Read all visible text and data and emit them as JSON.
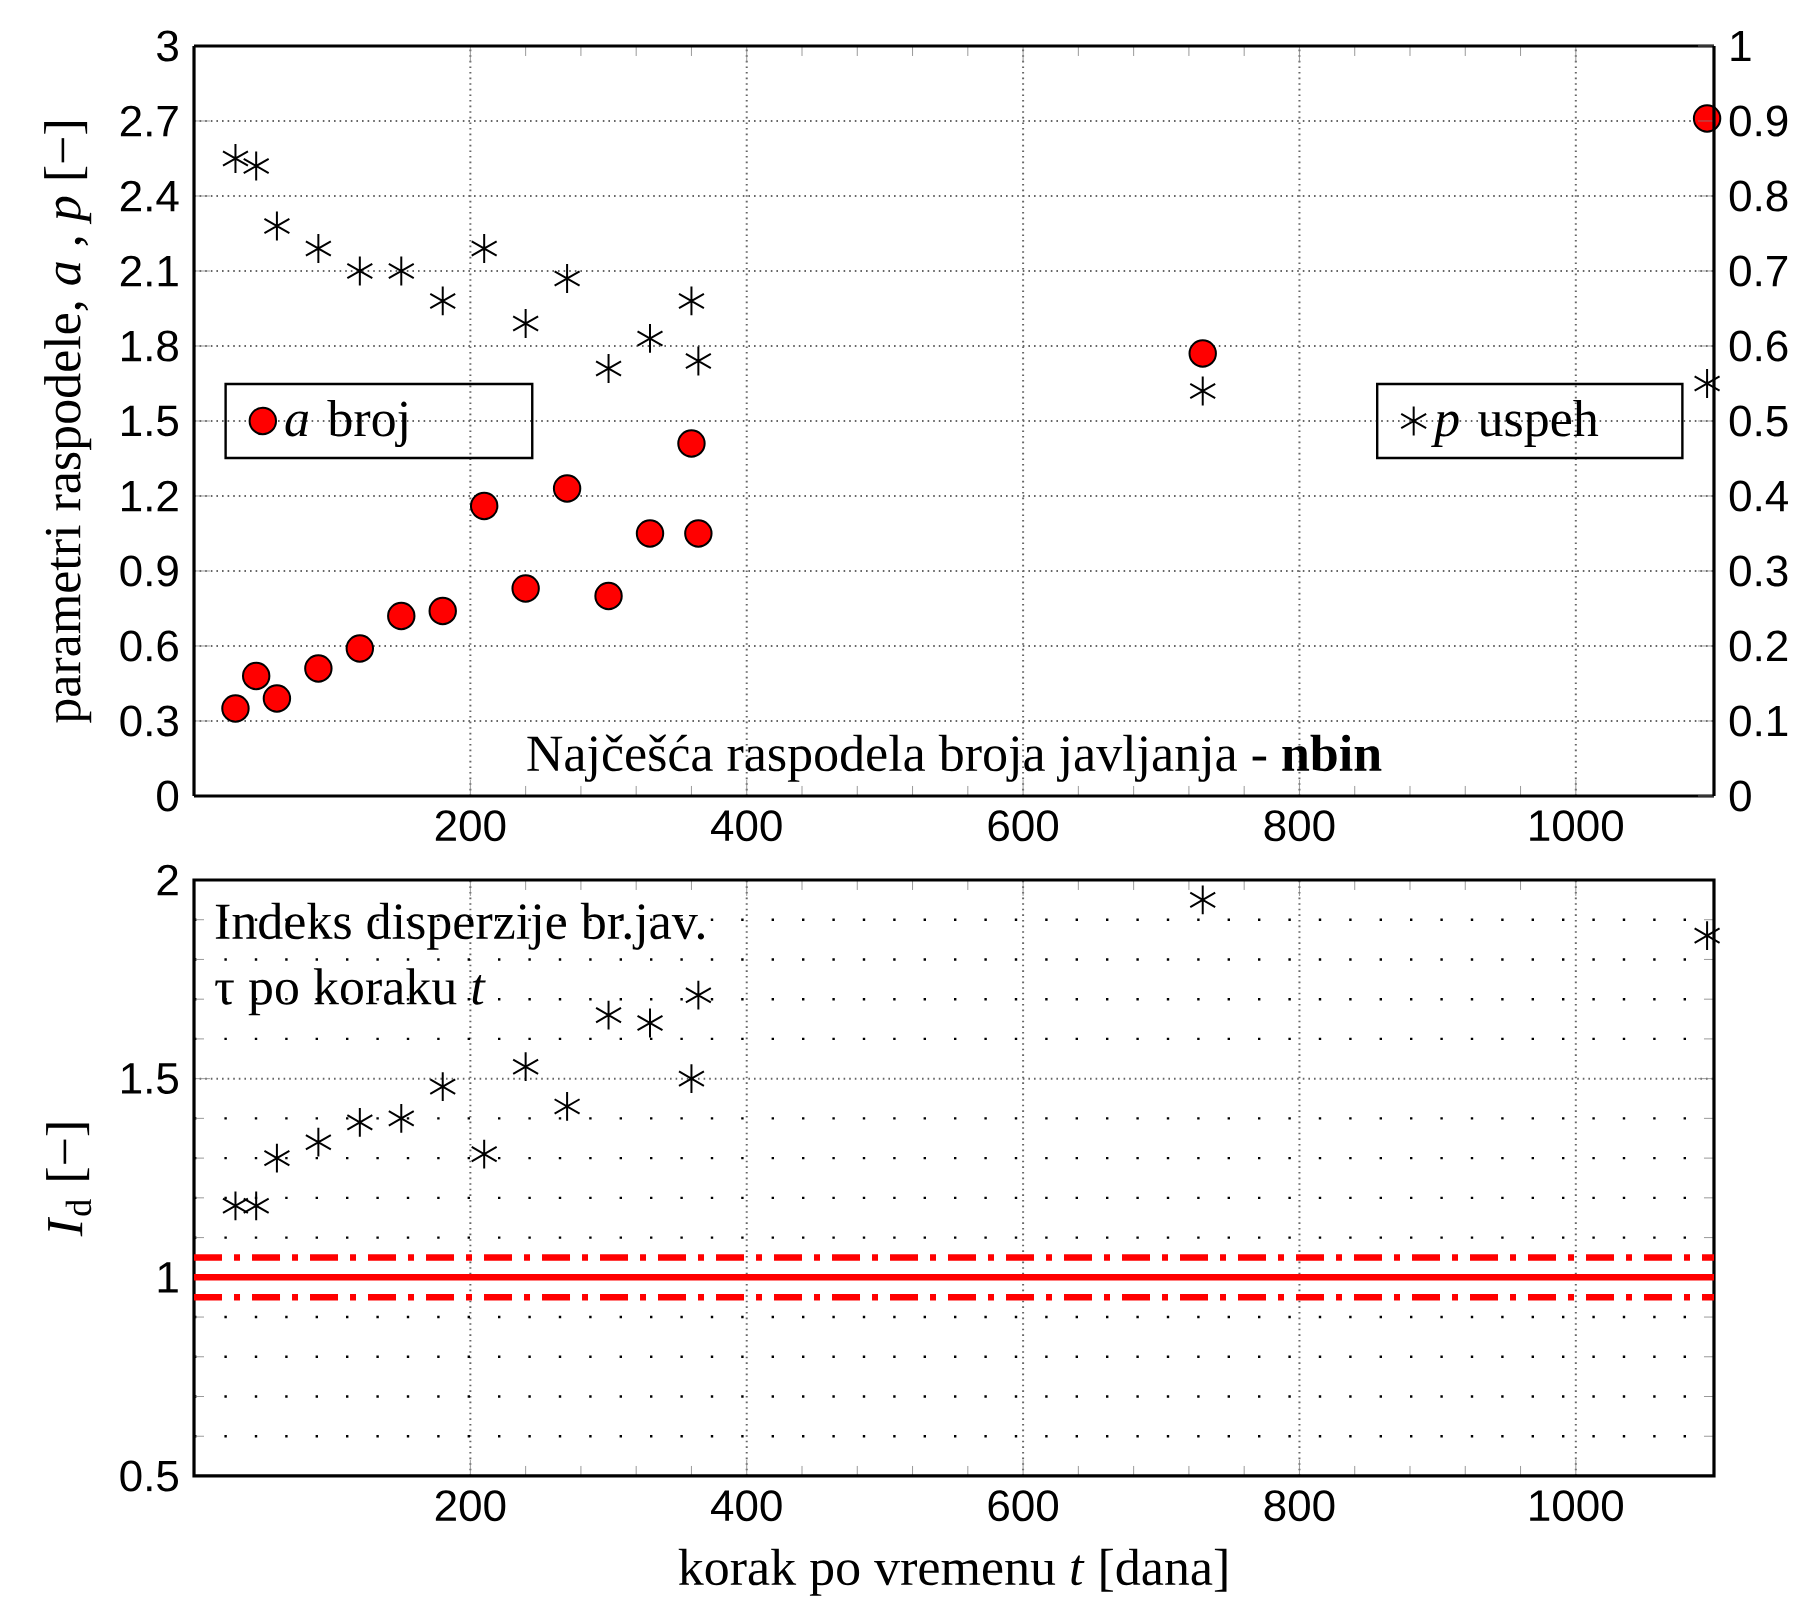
{
  "chart_data": [
    {
      "type": "scatter",
      "x": [
        30,
        45,
        60,
        90,
        120,
        150,
        180,
        210,
        240,
        270,
        300,
        330,
        360,
        365,
        730,
        1095
      ],
      "series": [
        {
          "name": "*a* broj",
          "color": "#ff0000",
          "marker": "circle",
          "values": [
            0.35,
            0.48,
            0.39,
            0.51,
            0.59,
            0.72,
            0.74,
            1.16,
            0.83,
            1.23,
            0.8,
            1.05,
            1.41,
            1.05,
            1.77,
            2.71
          ]
        },
        {
          "name": "*p* uspeh",
          "color": "#000000",
          "marker": "cross",
          "axis": "y2",
          "values": [
            0.85,
            0.84,
            0.76,
            0.73,
            0.7,
            0.7,
            0.66,
            0.73,
            0.63,
            0.69,
            0.57,
            0.61,
            0.66,
            0.58,
            0.54,
            0.55
          ]
        }
      ],
      "xlim": [
        0,
        1100
      ],
      "xticks": [
        200,
        400,
        600,
        800,
        1000
      ],
      "ylim": [
        0,
        3
      ],
      "yticks": [
        0,
        0.3,
        0.6,
        0.9,
        1.2,
        1.5,
        1.8,
        2.1,
        2.4,
        2.7,
        3
      ],
      "y2lim": [
        0,
        1
      ],
      "y2ticks": [
        0,
        0.1,
        0.2,
        0.3,
        0.4,
        0.5,
        0.6,
        0.7,
        0.8,
        0.9,
        1
      ],
      "ylabel": "parametri raspodele, *a* , *p* [−]",
      "annotations": [
        "Najčešća raspodela broja javljanja - **nbin**"
      ],
      "grid": true,
      "legend": "left"
    },
    {
      "type": "scatter",
      "x": [
        30,
        45,
        60,
        90,
        120,
        150,
        180,
        210,
        240,
        270,
        300,
        330,
        360,
        365,
        730,
        1095
      ],
      "series": [
        {
          "color": "#000000",
          "marker": "cross",
          "values": [
            1.18,
            1.18,
            1.3,
            1.34,
            1.39,
            1.4,
            1.48,
            1.31,
            1.53,
            1.43,
            1.66,
            1.64,
            1.5,
            1.71,
            1.95,
            1.86
          ]
        }
      ],
      "xlim": [
        0,
        1100
      ],
      "xticks": [
        200,
        400,
        600,
        800,
        1000
      ],
      "ylim": [
        0.5,
        2
      ],
      "yticks": [
        0.5,
        1,
        1.5,
        2
      ],
      "xlabel": "korak po vremenu *t* [dana]",
      "ylabel": "*I*$_{d}$   [−]",
      "ref_lines": [
        {
          "axis": "y",
          "value": 1,
          "color": "#ff0000",
          "line_style": "solid"
        },
        {
          "axis": "y",
          "value": 1.05,
          "color": "#ff0000",
          "line_style": "dashdot"
        },
        {
          "axis": "y",
          "value": 0.95,
          "color": "#ff0000",
          "line_style": "dashdot"
        }
      ],
      "annotations": [
        "Indeks disperzije br.jav.",
        "τ po koraku *t*"
      ],
      "grid": true
    }
  ]
}
